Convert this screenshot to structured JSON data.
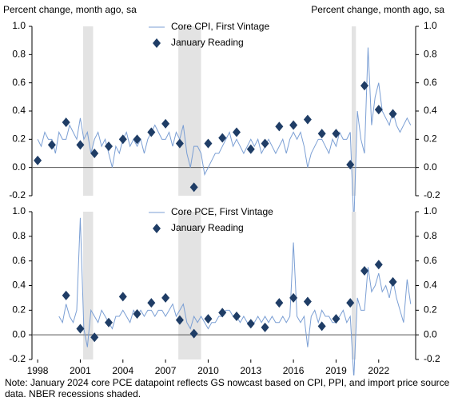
{
  "chart_data": [
    {
      "type": "line",
      "ylabel": "Percent change, month ago, sa",
      "y2label": "Percent change, month ago, sa",
      "xlim": [
        1997.6,
        2024.6
      ],
      "ylim": [
        -0.2,
        1
      ],
      "y2lim": [
        -0.2,
        1
      ],
      "yticks": [
        -0.2,
        {
          "value": 0,
          "label": "0.0"
        },
        0.2,
        0.4,
        0.6,
        0.8,
        {
          "value": 1,
          "label": "1.0"
        }
      ],
      "y2ticks": [
        -0.2,
        {
          "value": 0,
          "label": "0.0"
        },
        0.2,
        0.4,
        0.6,
        0.8,
        {
          "value": 1,
          "label": "1.0"
        }
      ],
      "shaded_periods": [
        [
          2001.2,
          2001.9
        ],
        [
          2007.9,
          2009.5
        ],
        [
          2020.1,
          2020.4
        ]
      ],
      "series": [
        {
          "name": "Core CPI, First Vintage",
          "style": "line",
          "color": "#7b9fd4",
          "x": [
            1998,
            1998.25,
            1998.5,
            1998.75,
            1999,
            1999.25,
            1999.5,
            1999.75,
            2000,
            2000.25,
            2000.5,
            2000.75,
            2001,
            2001.25,
            2001.5,
            2001.75,
            2002,
            2002.25,
            2002.5,
            2002.75,
            2003,
            2003.25,
            2003.5,
            2003.75,
            2004,
            2004.25,
            2004.5,
            2004.75,
            2005,
            2005.25,
            2005.5,
            2005.75,
            2006,
            2006.25,
            2006.5,
            2006.75,
            2007,
            2007.25,
            2007.5,
            2007.75,
            2008,
            2008.25,
            2008.5,
            2008.75,
            2009,
            2009.25,
            2009.5,
            2009.75,
            2010,
            2010.25,
            2010.5,
            2010.75,
            2011,
            2011.25,
            2011.5,
            2011.75,
            2012,
            2012.25,
            2012.5,
            2012.75,
            2013,
            2013.25,
            2013.5,
            2013.75,
            2014,
            2014.25,
            2014.5,
            2014.75,
            2015,
            2015.25,
            2015.5,
            2015.75,
            2016,
            2016.25,
            2016.5,
            2016.75,
            2017,
            2017.25,
            2017.5,
            2017.75,
            2018,
            2018.25,
            2018.5,
            2018.75,
            2019,
            2019.25,
            2019.5,
            2019.75,
            2020,
            2020.25,
            2020.5,
            2020.75,
            2021,
            2021.25,
            2021.5,
            2021.75,
            2022,
            2022.25,
            2022.5,
            2022.75,
            2023,
            2023.25,
            2023.5,
            2023.75,
            2024,
            2024.25
          ],
          "values": [
            0.2,
            0.15,
            0.25,
            0.2,
            0.2,
            0.1,
            0.25,
            0.2,
            0.2,
            0.3,
            0.25,
            0.2,
            0.35,
            0.2,
            0.25,
            0.1,
            0.2,
            0.25,
            0.15,
            0.2,
            0.1,
            0.0,
            0.15,
            0.1,
            0.2,
            0.25,
            0.15,
            0.2,
            0.15,
            0.2,
            0.1,
            0.2,
            0.25,
            0.3,
            0.25,
            0.2,
            0.2,
            0.25,
            0.15,
            0.25,
            0.2,
            0.3,
            0.1,
            0.0,
            0.15,
            0.15,
            0.1,
            -0.05,
            0.0,
            0.05,
            0.1,
            0.1,
            0.15,
            0.2,
            0.25,
            0.15,
            0.2,
            0.15,
            0.1,
            0.15,
            0.2,
            0.15,
            0.2,
            0.1,
            0.15,
            0.2,
            0.15,
            0.1,
            0.15,
            0.2,
            0.1,
            0.2,
            0.25,
            0.2,
            0.25,
            0.15,
            0.0,
            0.1,
            0.15,
            0.2,
            0.2,
            0.15,
            0.1,
            0.2,
            0.15,
            0.25,
            0.2,
            0.2,
            0.25,
            -0.4,
            0.4,
            0.2,
            0.1,
            0.85,
            0.3,
            0.5,
            0.6,
            0.4,
            0.35,
            0.3,
            0.4,
            0.3,
            0.25,
            0.3,
            0.35,
            0.3
          ]
        },
        {
          "name": "January Reading",
          "style": "diamond",
          "color": "#1f3d66",
          "x": [
            1998,
            1999,
            2000,
            2001,
            2002,
            2003,
            2004,
            2005,
            2006,
            2007,
            2008,
            2009,
            2010,
            2011,
            2012,
            2013,
            2014,
            2015,
            2016,
            2017,
            2018,
            2019,
            2020,
            2021,
            2022,
            2023
          ],
          "values": [
            0.05,
            0.16,
            0.32,
            0.16,
            0.1,
            0.15,
            0.2,
            0.2,
            0.25,
            0.31,
            0.17,
            -0.14,
            0.17,
            0.21,
            0.25,
            0.13,
            0.17,
            0.29,
            0.3,
            0.34,
            0.24,
            0.24,
            0.02,
            0.58,
            0.41,
            0.38
          ]
        }
      ]
    },
    {
      "type": "line",
      "xlim": [
        1997.6,
        2024.6
      ],
      "ylim": [
        -0.2,
        1
      ],
      "y2lim": [
        -0.2,
        1
      ],
      "yticks": [
        -0.2,
        {
          "value": 0,
          "label": "0.0"
        },
        0.2,
        0.4,
        0.6,
        0.8,
        {
          "value": 1,
          "label": "1.0"
        }
      ],
      "y2ticks": [
        -0.2,
        {
          "value": 0,
          "label": "0.0"
        },
        0.2,
        0.4,
        0.6,
        0.8,
        {
          "value": 1,
          "label": "1.0"
        }
      ],
      "xticks": [
        1998,
        2001,
        2004,
        2007,
        2010,
        2013,
        2016,
        2019,
        2022
      ],
      "shaded_periods": [
        [
          2001.2,
          2001.9
        ],
        [
          2007.9,
          2009.5
        ],
        [
          2020.1,
          2020.4
        ]
      ],
      "series": [
        {
          "name": "Core PCE, First Vintage",
          "style": "line",
          "color": "#7b9fd4",
          "x": [
            1999.5,
            1999.75,
            2000,
            2000.25,
            2000.5,
            2000.75,
            2001,
            2001.25,
            2001.5,
            2001.75,
            2002,
            2002.25,
            2002.5,
            2002.75,
            2003,
            2003.25,
            2003.5,
            2003.75,
            2004,
            2004.25,
            2004.5,
            2004.75,
            2005,
            2005.25,
            2005.5,
            2005.75,
            2006,
            2006.25,
            2006.5,
            2006.75,
            2007,
            2007.25,
            2007.5,
            2007.75,
            2008,
            2008.25,
            2008.5,
            2008.75,
            2009,
            2009.25,
            2009.5,
            2009.75,
            2010,
            2010.25,
            2010.5,
            2010.75,
            2011,
            2011.25,
            2011.5,
            2011.75,
            2012,
            2012.25,
            2012.5,
            2012.75,
            2013,
            2013.25,
            2013.5,
            2013.75,
            2014,
            2014.25,
            2014.5,
            2014.75,
            2015,
            2015.25,
            2015.5,
            2015.75,
            2016,
            2016.25,
            2016.5,
            2016.75,
            2017,
            2017.25,
            2017.5,
            2017.75,
            2018,
            2018.25,
            2018.5,
            2018.75,
            2019,
            2019.25,
            2019.5,
            2019.75,
            2020,
            2020.25,
            2020.5,
            2020.75,
            2021,
            2021.25,
            2021.5,
            2021.75,
            2022,
            2022.25,
            2022.5,
            2022.75,
            2023,
            2023.25,
            2023.5,
            2023.75,
            2024,
            2024.25
          ],
          "values": [
            0.15,
            0.1,
            0.25,
            0.15,
            0.1,
            0.2,
            0.95,
            0.05,
            -0.1,
            0.2,
            0.15,
            0.1,
            0.2,
            0.15,
            0.1,
            0.05,
            0.15,
            0.15,
            0.2,
            0.15,
            0.1,
            0.2,
            0.15,
            0.2,
            0.15,
            0.2,
            0.2,
            0.15,
            0.2,
            0.2,
            0.15,
            0.2,
            0.25,
            0.15,
            0.2,
            0.25,
            0.1,
            0.05,
            0.15,
            0.1,
            0.15,
            0.1,
            0.05,
            0.1,
            0.1,
            0.15,
            0.15,
            0.2,
            0.2,
            0.15,
            0.15,
            0.1,
            0.15,
            0.1,
            0.1,
            0.1,
            0.15,
            0.1,
            0.15,
            0.1,
            0.15,
            0.1,
            0.1,
            0.15,
            0.1,
            0.15,
            0.75,
            0.15,
            0.1,
            0.15,
            -0.1,
            0.15,
            0.2,
            0.1,
            0.2,
            0.15,
            0.15,
            0.1,
            0.1,
            0.15,
            0.2,
            0.1,
            0.15,
            -0.35,
            0.3,
            0.2,
            0.2,
            0.55,
            0.35,
            0.4,
            0.5,
            0.35,
            0.4,
            0.3,
            0.45,
            0.3,
            0.2,
            0.1,
            0.45,
            0.25
          ]
        },
        {
          "name": "January Reading",
          "style": "diamond",
          "color": "#1f3d66",
          "x": [
            2000,
            2001,
            2002,
            2003,
            2004,
            2005,
            2006,
            2007,
            2008,
            2009,
            2010,
            2011,
            2012,
            2013,
            2014,
            2015,
            2016,
            2017,
            2018,
            2019,
            2020,
            2021,
            2022,
            2023
          ],
          "values": [
            0.32,
            0.05,
            -0.02,
            0.1,
            0.31,
            0.17,
            0.26,
            0.3,
            0.12,
            0.01,
            0.13,
            0.18,
            0.15,
            0.09,
            0.06,
            0.26,
            0.3,
            0.27,
            0.07,
            0.13,
            0.26,
            0.52,
            0.57,
            0.43
          ]
        }
      ]
    }
  ],
  "note": "Note: January 2024 core PCE datapoint reflects GS nowcast based on CPI, PPI, and import price source data. NBER recessions shaded."
}
